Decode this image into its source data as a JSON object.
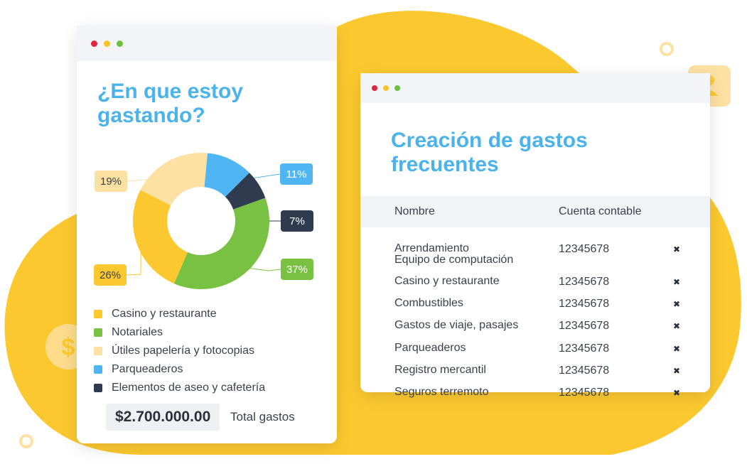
{
  "colors": {
    "accent": "#4bb3ec",
    "blob": "#fbc92f",
    "casino": "#fbc92f",
    "notariales": "#78c142",
    "utiles": "#fde1a3",
    "parqueaderos": "#4fb6f3",
    "aseo": "#2f3b4f"
  },
  "left_window": {
    "title": "¿En que estoy gastando?",
    "total_value": "$2.700.000.00",
    "total_label": "Total gastos",
    "legend": [
      {
        "label": "Casino y restaurante",
        "color": "#fbc92f"
      },
      {
        "label": "Notariales",
        "color": "#78c142"
      },
      {
        "label": "Útiles papelería y fotocopias",
        "color": "#fde1a3"
      },
      {
        "label": "Parqueaderos",
        "color": "#4fb6f3"
      },
      {
        "label": "Elementos de aseo y cafetería",
        "color": "#2f3b4f"
      }
    ]
  },
  "chart_data": {
    "type": "pie",
    "donut": true,
    "categories": [
      "Útiles papelería y fotocopias",
      "Parqueaderos",
      "Elementos de aseo y cafetería",
      "Notariales",
      "Casino y restaurante"
    ],
    "values": [
      19,
      11,
      7,
      37,
      26
    ],
    "labels": [
      "19%",
      "11%",
      "7%",
      "37%",
      "26%"
    ],
    "colors": [
      "#fde1a3",
      "#4fb6f3",
      "#2f3b4f",
      "#78c142",
      "#fbc92f"
    ]
  },
  "right_window": {
    "title": "Creación de gastos frecuentes",
    "columns": [
      "Nombre",
      "Cuenta contable"
    ],
    "delete_icon": "close-icon",
    "rows": [
      {
        "name": "Arrendamiento\nEquipo de computación",
        "account": "12345678"
      },
      {
        "name": "Casino y restaurante",
        "account": "12345678"
      },
      {
        "name": "Combustibles",
        "account": "12345678"
      },
      {
        "name": "Gastos de viaje, pasajes",
        "account": "12345678"
      },
      {
        "name": "Parqueaderos",
        "account": "12345678"
      },
      {
        "name": "Registro mercantil",
        "account": "12345678"
      },
      {
        "name": "Seguros terremoto",
        "account": "12345678"
      }
    ]
  }
}
